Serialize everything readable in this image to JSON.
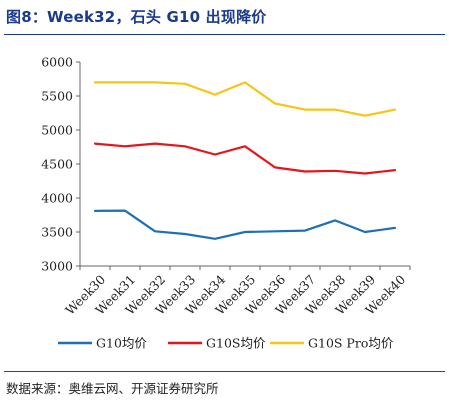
{
  "header": {
    "title": "图8：Week32，石头 G10 出现降价"
  },
  "footer": {
    "source": "数据来源：奥维云网、开源证券研究所"
  },
  "chart_data": {
    "type": "line",
    "categories": [
      "Week30",
      "Week31",
      "Week32",
      "Week33",
      "Week34",
      "Week35",
      "Week36",
      "Week37",
      "Week38",
      "Week39",
      "Week40"
    ],
    "ylim": [
      3000,
      6000
    ],
    "yticks": [
      "3000",
      "3500",
      "4000",
      "4500",
      "5000",
      "5500",
      "6000"
    ],
    "grid": false,
    "legend_position": "bottom",
    "series": [
      {
        "name": "G10均价",
        "color": "#1f6fb8",
        "values": [
          3810,
          3815,
          3510,
          3470,
          3400,
          3500,
          3510,
          3520,
          3670,
          3500,
          3560
        ]
      },
      {
        "name": "G10S均价",
        "color": "#e8141b",
        "values": [
          4800,
          4760,
          4800,
          4760,
          4640,
          4760,
          4450,
          4390,
          4400,
          4360,
          4410
        ]
      },
      {
        "name": "G10S Pro均价",
        "color": "#f5c518",
        "values": [
          5700,
          5700,
          5700,
          5680,
          5520,
          5700,
          5390,
          5300,
          5300,
          5210,
          5300
        ]
      }
    ]
  }
}
